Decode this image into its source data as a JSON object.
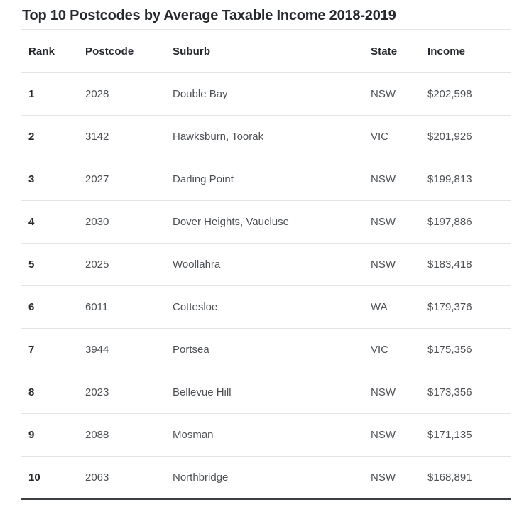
{
  "chart_data": {
    "type": "table",
    "title": "Top 10 Postcodes by Average Taxable Income 2018-2019",
    "columns": [
      "Rank",
      "Postcode",
      "Suburb",
      "State",
      "Income"
    ],
    "rows": [
      {
        "rank": "1",
        "postcode": "2028",
        "suburb": "Double Bay",
        "state": "NSW",
        "income": "$202,598"
      },
      {
        "rank": "2",
        "postcode": "3142",
        "suburb": "Hawksburn, Toorak",
        "state": "VIC",
        "income": "$201,926"
      },
      {
        "rank": "3",
        "postcode": "2027",
        "suburb": "Darling Point",
        "state": "NSW",
        "income": "$199,813"
      },
      {
        "rank": "4",
        "postcode": "2030",
        "suburb": "Dover Heights, Vaucluse",
        "state": "NSW",
        "income": "$197,886"
      },
      {
        "rank": "5",
        "postcode": "2025",
        "suburb": "Woollahra",
        "state": "NSW",
        "income": "$183,418"
      },
      {
        "rank": "6",
        "postcode": "6011",
        "suburb": "Cottesloe",
        "state": "WA",
        "income": "$179,376"
      },
      {
        "rank": "7",
        "postcode": "3944",
        "suburb": "Portsea",
        "state": "VIC",
        "income": "$175,356"
      },
      {
        "rank": "8",
        "postcode": "2023",
        "suburb": "Bellevue Hill",
        "state": "NSW",
        "income": "$173,356"
      },
      {
        "rank": "9",
        "postcode": "2088",
        "suburb": "Mosman",
        "state": "NSW",
        "income": "$171,135"
      },
      {
        "rank": "10",
        "postcode": "2063",
        "suburb": "Northbridge",
        "state": "NSW",
        "income": "$168,891"
      }
    ],
    "layout": {
      "grid": "horizontal-dividers-only",
      "header_position": "top",
      "currency": "AUD"
    }
  },
  "colors": {
    "background": "#ffffff",
    "heading_text": "#26292e",
    "body_text": "#4d5156",
    "divider": "#e3e4e6",
    "bottom_rule": "#3c4043"
  }
}
